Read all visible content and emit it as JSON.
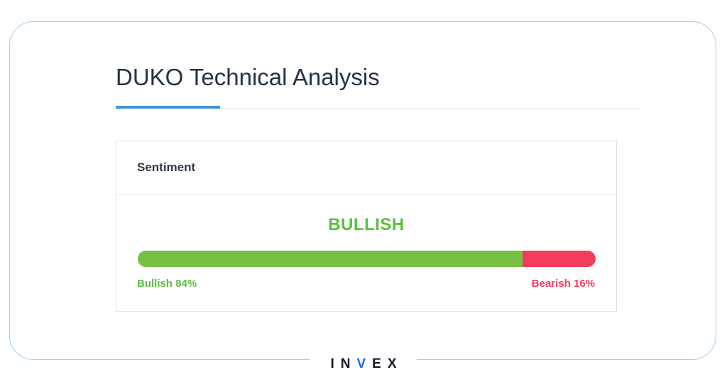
{
  "title": "DUKO Technical Analysis",
  "card": {
    "header": "Sentiment",
    "signal": "BULLISH",
    "bullish": {
      "label": "Bullish 84%",
      "percent": 84,
      "color": "#76c043"
    },
    "bearish": {
      "label": "Bearish 16%",
      "percent": 16,
      "color": "#f23e5c"
    }
  },
  "brand": {
    "logo_text": "INVEX",
    "accent": "#1e6fd9"
  },
  "colors": {
    "accent": "#3f93d8",
    "frame": "#9ecbef",
    "title": "#253444"
  }
}
